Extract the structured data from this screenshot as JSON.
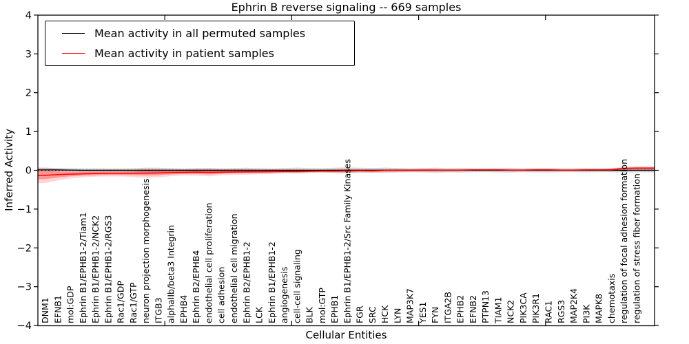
{
  "chart_data": {
    "type": "line",
    "title": "Ephrin B reverse signaling -- 669 samples",
    "xlabel": "Cellular Entities",
    "ylabel": "Inferred Activity",
    "ylim": [
      -4,
      4
    ],
    "yticks": [
      4,
      3,
      2,
      1,
      0,
      -1,
      -2,
      -3,
      -4
    ],
    "xticks_unlabeled": [
      10,
      20,
      30,
      40
    ],
    "grid": false,
    "zero_reference_line": {
      "value": 0,
      "style": "dotted",
      "color": "#000000"
    },
    "legend": {
      "position": "upper left",
      "entries": [
        {
          "label": "Mean activity in all permuted samples",
          "color": "#000000"
        },
        {
          "label": "Mean activity in patient samples",
          "color": "#ff0000"
        }
      ]
    },
    "categories": [
      "DNM1",
      "EFNB1",
      "mol:GDP",
      "Ephrin B1/EPHB1-2/Tiam1",
      "Ephrin B1/EPHB1-2/NCK2",
      "Ephrin B1/EPHB1-2/RGS3",
      "Rac1/GDP",
      "Rac1/GTP",
      "neuron projection morphogenesis",
      "ITGB3",
      "alphaIIb/beta3 Integrin",
      "EPHB4",
      "Ephrin B2/EPHB4",
      "endothelial cell proliferation",
      "cell adhesion",
      "endothelial cell migration",
      "Ephrin B2/EPHB1-2",
      "LCK",
      "Ephrin B1/EPHB1-2",
      "angiogenesis",
      "cell-cell signaling",
      "BLK",
      "mol:GTP",
      "EPHB1",
      "Ephrin B1/EPHB1-2/Src Family Kinases",
      "FGR",
      "SRC",
      "HCK",
      "LYN",
      "MAP3K7",
      "YES1",
      "FYN",
      "ITGA2B",
      "EPHB2",
      "EFNB2",
      "PTPN13",
      "TIAM1",
      "NCK2",
      "PIK3CA",
      "PIK3R1",
      "RAC1",
      "RGS3",
      "MAP2K4",
      "PI3K",
      "MAPK8",
      "chemotaxis",
      "regulation of focal adhesion formation",
      "regulation of stress fiber formation"
    ],
    "series": [
      {
        "name": "Mean activity in all permuted samples",
        "color": "#000000",
        "band_color": "rgba(0,0,0,0.15)",
        "values": [
          0.01,
          0.01,
          0.005,
          0,
          0,
          0,
          0,
          0,
          0,
          0,
          0,
          0,
          0,
          0,
          0,
          0,
          0,
          0,
          0,
          0,
          0,
          0,
          0,
          0,
          0,
          0,
          0,
          0,
          0,
          0,
          0,
          0,
          0,
          0,
          0,
          0,
          0,
          0,
          0,
          0,
          0,
          0,
          0,
          0,
          0,
          0,
          0,
          0
        ],
        "band_halfwidth": [
          0.055,
          0.05,
          0.05,
          0.05,
          0.05,
          0.05,
          0.05,
          0.055,
          0.07,
          0.065,
          0.055,
          0.05,
          0.055,
          0.06,
          0.05,
          0.06,
          0.065,
          0.055,
          0.05,
          0.06,
          0.07,
          0.06,
          0.055,
          0.065,
          0.075,
          0.065,
          0.06,
          0.07,
          0.06,
          0.05,
          0.055,
          0.065,
          0.055,
          0.06,
          0.05,
          0.05,
          0.055,
          0.06,
          0.05,
          0.055,
          0.06,
          0.05,
          0.05,
          0.055,
          0.05,
          0.05,
          0.055,
          0.055
        ]
      },
      {
        "name": "Mean activity in patient samples",
        "color": "#ff0000",
        "band_color": "rgba(255,0,0,0.30)",
        "band_color_outer": "rgba(255,0,0,0.16)",
        "values": [
          -0.13,
          -0.11,
          -0.1,
          -0.09,
          -0.085,
          -0.08,
          -0.08,
          -0.08,
          -0.075,
          -0.07,
          -0.06,
          -0.055,
          -0.05,
          -0.055,
          -0.05,
          -0.045,
          -0.04,
          -0.04,
          -0.035,
          -0.03,
          -0.03,
          -0.025,
          -0.02,
          -0.02,
          -0.015,
          -0.01,
          -0.015,
          -0.005,
          0,
          0,
          0.005,
          0.005,
          0,
          0.005,
          0.01,
          0.01,
          0.01,
          0.005,
          0.005,
          0.01,
          0.01,
          0.005,
          0.005,
          0.01,
          0.01,
          0.015,
          0.05,
          0.055
        ],
        "band_halfwidth": [
          0.1,
          0.075,
          0.055,
          0.045,
          0.04,
          0.04,
          0.04,
          0.045,
          0.06,
          0.055,
          0.045,
          0.04,
          0.045,
          0.05,
          0.04,
          0.035,
          0.035,
          0.03,
          0.03,
          0.025,
          0.025,
          0.02,
          0.02,
          0.025,
          0.03,
          0.02,
          0.025,
          0.02,
          0.02,
          0.02,
          0.02,
          0.02,
          0.015,
          0.015,
          0.015,
          0.015,
          0.015,
          0.015,
          0.015,
          0.015,
          0.015,
          0.015,
          0.015,
          0.015,
          0.015,
          0.02,
          0.025,
          0.025
        ]
      }
    ]
  }
}
